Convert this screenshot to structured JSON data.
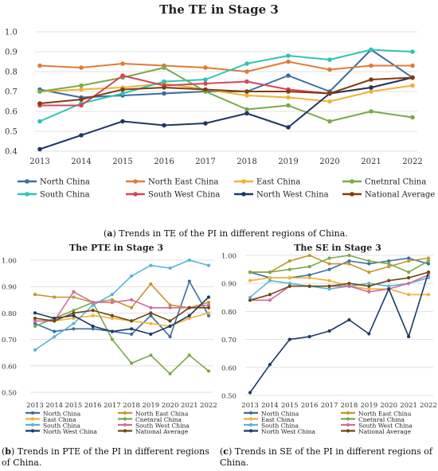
{
  "captions": {
    "a_letter": "a",
    "a_text": "Trends in TE of the PI in different regions of China.",
    "b_letter": "b",
    "b_text": "Trends in PTE of the PI in different regions of China.",
    "c_letter": "c",
    "c_text": "Trends in SE of the PI in different regions of China."
  },
  "chart_data": [
    {
      "type": "line",
      "title": "The TE in Stage 3",
      "xlabel": "",
      "ylabel": "",
      "x": [
        "2013",
        "2014",
        "2015",
        "2016",
        "2017",
        "2018",
        "2019",
        "2020",
        "2021",
        "2022"
      ],
      "ylim": [
        0.4,
        1.0
      ],
      "yticks": [
        "0.4",
        "0.5",
        "0.6",
        "0.7",
        "0.8",
        "0.9",
        "1.0"
      ],
      "grid": true,
      "legend": "bottom",
      "series": [
        {
          "name": "North China",
          "color": "#3a6ea5",
          "values": [
            0.71,
            0.67,
            0.68,
            0.69,
            0.7,
            0.7,
            0.78,
            0.7,
            0.91,
            0.77
          ]
        },
        {
          "name": "North East China",
          "color": "#e07b39",
          "values": [
            0.83,
            0.82,
            0.84,
            0.83,
            0.82,
            0.8,
            0.85,
            0.81,
            0.83,
            0.83
          ]
        },
        {
          "name": "East China",
          "color": "#f2b134",
          "values": [
            0.7,
            0.71,
            0.72,
            0.74,
            0.71,
            0.68,
            0.67,
            0.65,
            0.7,
            0.73
          ]
        },
        {
          "name": "Cnetnral China",
          "color": "#7aaa48",
          "values": [
            0.7,
            0.73,
            0.77,
            0.82,
            0.7,
            0.61,
            0.63,
            0.55,
            0.6,
            0.57
          ]
        },
        {
          "name": "South China",
          "color": "#2ec4b6",
          "values": [
            0.55,
            0.64,
            0.69,
            0.75,
            0.76,
            0.84,
            0.88,
            0.86,
            0.91,
            0.9
          ]
        },
        {
          "name": "South West China",
          "color": "#d6455b",
          "values": [
            0.63,
            0.63,
            0.78,
            0.73,
            0.74,
            0.75,
            0.71,
            0.69,
            0.72,
            0.77
          ]
        },
        {
          "name": "North West China",
          "color": "#1f3864",
          "values": [
            0.41,
            0.48,
            0.55,
            0.53,
            0.54,
            0.59,
            0.52,
            0.69,
            0.72,
            0.77
          ]
        },
        {
          "name": "National Average",
          "color": "#843c0c",
          "values": [
            0.64,
            0.66,
            0.71,
            0.72,
            0.71,
            0.7,
            0.7,
            0.69,
            0.76,
            0.77
          ]
        }
      ]
    },
    {
      "type": "line",
      "title": "The PTE in Stage 3",
      "xlabel": "",
      "ylabel": "",
      "x": [
        "2013",
        "2014",
        "2015",
        "2016",
        "2017",
        "2018",
        "2019",
        "2020",
        "2021",
        "2022"
      ],
      "ylim": [
        0.5,
        1.0
      ],
      "yticks": [
        "0.50",
        "0.60",
        "0.70",
        "0.80",
        "0.90",
        "1.00"
      ],
      "grid": true,
      "legend": "bottom",
      "series": [
        {
          "name": "North China",
          "color": "#3a6ea5",
          "values": [
            0.76,
            0.73,
            0.74,
            0.74,
            0.73,
            0.72,
            0.79,
            0.71,
            0.92,
            0.79
          ]
        },
        {
          "name": "North East China",
          "color": "#c4962d",
          "values": [
            0.87,
            0.86,
            0.86,
            0.84,
            0.85,
            0.82,
            0.91,
            0.83,
            0.82,
            0.84
          ]
        },
        {
          "name": "East China",
          "color": "#f2b134",
          "values": [
            0.77,
            0.77,
            0.78,
            0.79,
            0.78,
            0.77,
            0.76,
            0.75,
            0.78,
            0.8
          ]
        },
        {
          "name": "Cnetnral China",
          "color": "#7aaa48",
          "values": [
            0.75,
            0.78,
            0.81,
            0.84,
            0.7,
            0.61,
            0.64,
            0.57,
            0.64,
            0.58
          ]
        },
        {
          "name": "South China",
          "color": "#5ab4d8",
          "values": [
            0.66,
            0.71,
            0.76,
            0.83,
            0.87,
            0.94,
            0.98,
            0.97,
            1.0,
            0.98
          ]
        },
        {
          "name": "South West China",
          "color": "#d46a9f",
          "values": [
            0.77,
            0.77,
            0.88,
            0.84,
            0.84,
            0.85,
            0.82,
            0.82,
            0.82,
            0.83
          ]
        },
        {
          "name": "North West China",
          "color": "#1f3864",
          "values": [
            0.8,
            0.78,
            0.79,
            0.75,
            0.73,
            0.74,
            0.72,
            0.75,
            0.79,
            0.86
          ]
        },
        {
          "name": "National Average",
          "color": "#6b4a12",
          "values": [
            0.78,
            0.77,
            0.8,
            0.81,
            0.79,
            0.77,
            0.8,
            0.77,
            0.82,
            0.82
          ]
        }
      ]
    },
    {
      "type": "line",
      "title": "The SE in Stage 3",
      "xlabel": "",
      "ylabel": "",
      "x": [
        "2013",
        "2014",
        "2015",
        "2016",
        "2017",
        "2018",
        "2019",
        "2020",
        "2021",
        "2022"
      ],
      "ylim": [
        0.5,
        1.0
      ],
      "yticks": [
        "0.50",
        "0.60",
        "0.70",
        "0.80",
        "0.90",
        "1.00"
      ],
      "grid": true,
      "legend": "bottom",
      "series": [
        {
          "name": "North China",
          "color": "#3a6ea5",
          "values": [
            0.94,
            0.92,
            0.92,
            0.93,
            0.95,
            0.98,
            0.97,
            0.98,
            0.99,
            0.97
          ]
        },
        {
          "name": "North East China",
          "color": "#c4962d",
          "values": [
            0.94,
            0.94,
            0.98,
            1.0,
            0.97,
            0.97,
            0.94,
            0.96,
            0.98,
            0.99
          ]
        },
        {
          "name": "East China",
          "color": "#f2b134",
          "values": [
            0.91,
            0.92,
            0.92,
            0.92,
            0.91,
            0.89,
            0.88,
            0.88,
            0.86,
            0.86
          ]
        },
        {
          "name": "Cnetnral China",
          "color": "#7aaa48",
          "values": [
            0.94,
            0.94,
            0.95,
            0.96,
            0.99,
            1.0,
            0.98,
            0.97,
            0.94,
            0.98
          ]
        },
        {
          "name": "South China",
          "color": "#5ab4d8",
          "values": [
            0.85,
            0.91,
            0.9,
            0.89,
            0.88,
            0.89,
            0.9,
            0.89,
            0.9,
            0.92
          ]
        },
        {
          "name": "South West China",
          "color": "#d46a9f",
          "values": [
            0.84,
            0.84,
            0.89,
            0.89,
            0.89,
            0.89,
            0.87,
            0.88,
            0.9,
            0.93
          ]
        },
        {
          "name": "North West China",
          "color": "#1f3864",
          "values": [
            0.51,
            0.61,
            0.7,
            0.71,
            0.73,
            0.77,
            0.72,
            0.88,
            0.71,
            0.94
          ]
        },
        {
          "name": "National Average",
          "color": "#6b4a12",
          "values": [
            0.84,
            0.86,
            0.89,
            0.89,
            0.89,
            0.9,
            0.89,
            0.91,
            0.92,
            0.94
          ]
        }
      ]
    }
  ]
}
